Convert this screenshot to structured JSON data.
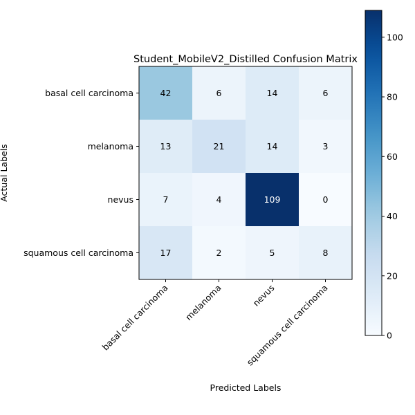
{
  "chart_data": {
    "type": "heatmap",
    "title": "Student_MobileV2_Distilled Confusion Matrix",
    "xlabel": "Predicted Labels",
    "ylabel": "Actual Labels",
    "x_categories": [
      "basal cell carcinoma",
      "melanoma",
      "nevus",
      "squamous cell carcinoma"
    ],
    "y_categories": [
      "basal cell carcinoma",
      "melanoma",
      "nevus",
      "squamous cell carcinoma"
    ],
    "values": [
      [
        42,
        6,
        14,
        6
      ],
      [
        13,
        21,
        14,
        3
      ],
      [
        7,
        4,
        109,
        0
      ],
      [
        17,
        2,
        5,
        8
      ]
    ],
    "colormap": "Blues",
    "color_range": [
      0,
      109
    ],
    "colorbar_ticks": [
      "0",
      "20",
      "40",
      "60",
      "80",
      "100"
    ],
    "colorbar_tick_values": [
      0,
      20,
      40,
      60,
      80,
      100
    ],
    "grid": false
  }
}
